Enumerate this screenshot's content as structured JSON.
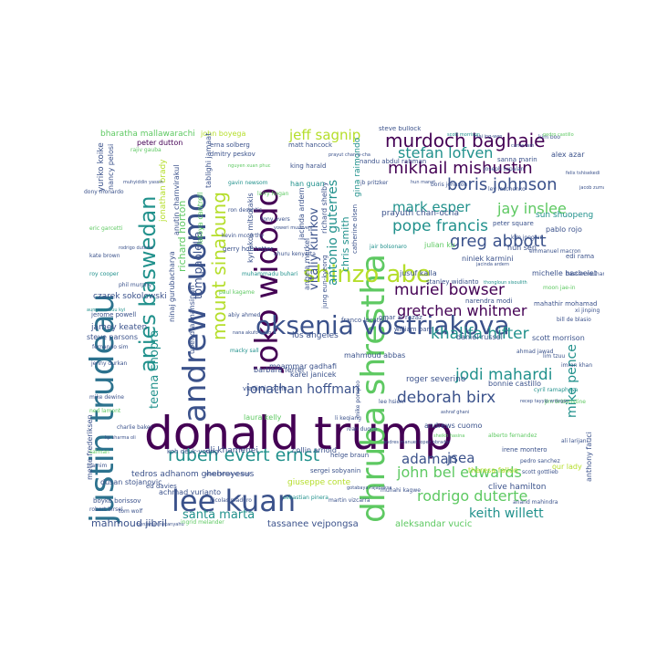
{
  "palette": {
    "deep_purple": "#440154",
    "indigo": "#3b528b",
    "teal": "#21918c",
    "green": "#5ec962",
    "yellow_green": "#b5de2b",
    "dark_teal": "#2c728e"
  },
  "words": [
    {
      "text": "donald trump",
      "color": "#440154"
    },
    {
      "text": "justin trudeau",
      "color": "#2c728e"
    },
    {
      "text": "dhruba shrestha",
      "color": "#5ec962"
    },
    {
      "text": "andrew cuomo",
      "color": "#3b528b"
    },
    {
      "text": "joko widodo",
      "color": "#440154"
    },
    {
      "text": "oksenia vostriakova",
      "color": "#3b528b"
    },
    {
      "text": "lee kuan",
      "color": "#3b528b"
    },
    {
      "text": "shinzo abe",
      "color": "#b5de2b"
    },
    {
      "text": "anies baswedan",
      "color": "#21918c"
    },
    {
      "text": "mount sinabung",
      "color": "#b5de2b"
    },
    {
      "text": "murdoch baghaie",
      "color": "#440154"
    },
    {
      "text": "mikhail mishustin",
      "color": "#440154"
    },
    {
      "text": "ruben evert ernst",
      "color": "#21918c"
    },
    {
      "text": "boris johnson",
      "color": "#3b528b"
    },
    {
      "text": "greg abbott",
      "color": "#3b528b"
    },
    {
      "text": "pope francis",
      "color": "#21918c"
    },
    {
      "text": "muriel bowser",
      "color": "#440154"
    },
    {
      "text": "gretchen whitmer",
      "color": "#440154"
    },
    {
      "text": "khalifa hifter",
      "color": "#21918c"
    },
    {
      "text": "jodi mahardi",
      "color": "#21918c"
    },
    {
      "text": "deborah birx",
      "color": "#3b528b"
    },
    {
      "text": "john bel edwards",
      "color": "#5ec962"
    },
    {
      "text": "rodrigo duterte",
      "color": "#5ec962"
    },
    {
      "text": "keith willett",
      "color": "#21918c"
    },
    {
      "text": "adaman",
      "color": "#3b528b"
    },
    {
      "text": "jsea",
      "color": "#3b528b"
    },
    {
      "text": "santa marta",
      "color": "#21918c"
    },
    {
      "text": "jonathan hoffman",
      "color": "#3b528b"
    },
    {
      "text": "jeff sagnip",
      "color": "#b5de2b"
    },
    {
      "text": "stefan lofven",
      "color": "#21918c"
    },
    {
      "text": "mark esper",
      "color": "#21918c"
    },
    {
      "text": "jay inslee",
      "color": "#5ec962"
    },
    {
      "text": "vitaliy kurikov",
      "color": "#3b528b"
    },
    {
      "text": "antonio guterres",
      "color": "#21918c"
    },
    {
      "text": "mike pence",
      "color": "#21918c"
    },
    {
      "text": "teena chopra",
      "color": "#21918c"
    },
    {
      "text": "tom paolella",
      "color": "#3b528b"
    },
    {
      "text": "richard horton",
      "color": "#5ec962"
    },
    {
      "text": "chris smith",
      "color": "#21918c"
    },
    {
      "text": "mahmoud jibril",
      "color": "#3b528b"
    },
    {
      "text": "tassanee vejpongsa",
      "color": "#3b528b"
    },
    {
      "text": "aleksandar vucic",
      "color": "#5ec962"
    },
    {
      "text": "bharatha mallawarachi",
      "color": "#5ec962"
    },
    {
      "text": "john boyega",
      "color": "#b5de2b"
    },
    {
      "text": "peter dutton",
      "color": "#440154"
    },
    {
      "text": "yuriko koike",
      "color": "#3b528b"
    },
    {
      "text": "nancy pelosi",
      "color": "#3b528b"
    },
    {
      "text": "czarek sokolowski",
      "color": "#3b528b"
    },
    {
      "text": "jamey keaten",
      "color": "#3b528b"
    },
    {
      "text": "steve parsons",
      "color": "#3b528b"
    },
    {
      "text": "mette frederiksen",
      "color": "#3b528b"
    },
    {
      "text": "dusan stojanovic",
      "color": "#3b528b"
    },
    {
      "text": "achmad yurianto",
      "color": "#3b528b"
    },
    {
      "text": "tedros adhanom ghebreyesus",
      "color": "#3b528b"
    },
    {
      "text": "ali khamenei",
      "color": "#3b528b"
    },
    {
      "text": "collin arnold",
      "color": "#3b528b"
    },
    {
      "text": "giuseppe conte",
      "color": "#b5de2b"
    },
    {
      "text": "clive hamilton",
      "color": "#3b528b"
    },
    {
      "text": "anthony fauci",
      "color": "#3b528b"
    },
    {
      "text": "roger severino",
      "color": "#3b528b"
    },
    {
      "text": "andrews cuomo",
      "color": "#3b528b"
    },
    {
      "text": "bonnie castillo",
      "color": "#3b528b"
    },
    {
      "text": "barbara ferrer",
      "color": "#3b528b"
    },
    {
      "text": "moammar gadhafi",
      "color": "#3b528b"
    },
    {
      "text": "mahmoud abbas",
      "color": "#3b528b"
    },
    {
      "text": "karel janicek",
      "color": "#3b528b"
    },
    {
      "text": "daniel russel",
      "color": "#3b528b"
    },
    {
      "text": "scott morrison",
      "color": "#3b528b"
    },
    {
      "text": "prayuth chan-ocha",
      "color": "#3b528b"
    },
    {
      "text": "sun shuopeng",
      "color": "#21918c"
    },
    {
      "text": "pablo rojo",
      "color": "#3b528b"
    },
    {
      "text": "julian ku",
      "color": "#5ec962"
    },
    {
      "text": "hun sen",
      "color": "#3b528b"
    },
    {
      "text": "niniek karmini",
      "color": "#3b528b"
    },
    {
      "text": "jusuf kalla",
      "color": "#3b528b"
    },
    {
      "text": "latoya cantrell",
      "color": "#5ec962"
    },
    {
      "text": "matt hancock",
      "color": "#3b528b"
    },
    {
      "text": "erna solberg",
      "color": "#3b528b"
    },
    {
      "text": "alex azar",
      "color": "#3b528b"
    },
    {
      "text": "sanna marin",
      "color": "#3b528b"
    },
    {
      "text": "jacinda ardern",
      "color": "#3b528b"
    },
    {
      "text": "richard shelby",
      "color": "#3b528b"
    },
    {
      "text": "gina raimondo",
      "color": "#21918c"
    },
    {
      "text": "han guan",
      "color": "#21918c"
    },
    {
      "text": "king harald",
      "color": "#3b528b"
    },
    {
      "text": "dmitry peskov",
      "color": "#3b528b"
    },
    {
      "text": "steve bullock",
      "color": "#3b528b"
    },
    {
      "text": "michelle bachelet",
      "color": "#3b528b"
    },
    {
      "text": "edi rama",
      "color": "#3b528b"
    },
    {
      "text": "mahathir mohamad",
      "color": "#3b528b"
    },
    {
      "text": "narendra modi",
      "color": "#3b528b"
    },
    {
      "text": "william barr",
      "color": "#3b528b"
    },
    {
      "text": "franco locatelli",
      "color": "#3b528b"
    },
    {
      "text": "irene montero",
      "color": "#3b528b"
    },
    {
      "text": "theresa fallon",
      "color": "#b5de2b"
    },
    {
      "text": "helge braun",
      "color": "#3b528b"
    },
    {
      "text": "sergei sobyanin",
      "color": "#3b528b"
    },
    {
      "text": "laura kelly",
      "color": "#5ec962"
    },
    {
      "text": "ninaj gurubacharya",
      "color": "#3b528b"
    },
    {
      "text": "upendra mansingh",
      "color": "#3b528b"
    },
    {
      "text": "vladimir putin",
      "color": "#3b528b"
    },
    {
      "text": "angela merkel",
      "color": "#3b528b"
    },
    {
      "text": "jerome powell",
      "color": "#3b528b"
    },
    {
      "text": "boyko borissov",
      "color": "#3b528b"
    },
    {
      "text": "ed davies",
      "color": "#3b528b"
    },
    {
      "text": "anutin charnvirakul",
      "color": "#3b528b"
    },
    {
      "text": "jonathan brady",
      "color": "#b5de2b"
    },
    {
      "text": "kyriakos mitsotakis",
      "color": "#3b528b"
    },
    {
      "text": "tablighi jamaat",
      "color": "#3b528b"
    },
    {
      "text": "gerry hofstetter",
      "color": "#3b528b"
    },
    {
      "text": "jung eun-kyeong",
      "color": "#3b528b"
    },
    {
      "text": "stanley widianto",
      "color": "#3b528b"
    },
    {
      "text": "catherine olsen",
      "color": "#3b528b"
    },
    {
      "text": "los angeles",
      "color": "#3b528b"
    },
    {
      "text": "koh deuk-young",
      "color": "#3b528b"
    },
    {
      "text": "fernando sim",
      "color": "#3b528b"
    },
    {
      "text": "kevin mccarthy",
      "color": "#3b528b"
    },
    {
      "text": "omar al razaz",
      "color": "#3b528b"
    },
    {
      "text": "li keqiang",
      "color": "#3b528b"
    },
    {
      "text": "muhahi kagwe",
      "color": "#3b528b"
    },
    {
      "text": "scott gottlieb",
      "color": "#3b528b"
    },
    {
      "text": "pedro sanchez",
      "color": "#3b528b"
    },
    {
      "text": "anand mahindra",
      "color": "#3b528b"
    },
    {
      "text": "nandu abdul rahman",
      "color": "#3b528b"
    },
    {
      "text": "joseph tupalan",
      "color": "#3b528b"
    },
    {
      "text": "peter square",
      "color": "#3b528b"
    },
    {
      "text": "lev leschenko",
      "color": "#3b528b"
    },
    {
      "text": "boris johnson",
      "color": "#3b528b"
    },
    {
      "text": "rajiv gauba",
      "color": "#5ec962"
    },
    {
      "text": "dony monardo",
      "color": "#3b528b"
    },
    {
      "text": "jenny durkan",
      "color": "#3b528b"
    },
    {
      "text": "robert birsel",
      "color": "#3b528b"
    },
    {
      "text": "ingrid melander",
      "color": "#5ec962"
    },
    {
      "text": "kim boo",
      "color": "#3b528b"
    },
    {
      "text": "kim jong un",
      "color": "#3b528b"
    },
    {
      "text": "bill de blasio",
      "color": "#3b528b"
    },
    {
      "text": "lim tzuu",
      "color": "#3b528b"
    },
    {
      "text": "jim bridenstine",
      "color": "#5ec962"
    },
    {
      "text": "ali larijani",
      "color": "#3b528b"
    },
    {
      "text": "our lady",
      "color": "#b5de2b"
    },
    {
      "text": "mike pompeo",
      "color": "#3b528b"
    },
    {
      "text": "lee hsien",
      "color": "#3b528b"
    },
    {
      "text": "ahmad jawad",
      "color": "#3b528b"
    },
    {
      "text": "eric garcetti",
      "color": "#5ec962"
    },
    {
      "text": "kate brown",
      "color": "#3b528b"
    },
    {
      "text": "roy cooper",
      "color": "#21918c"
    },
    {
      "text": "phil murphy",
      "color": "#3b528b"
    },
    {
      "text": "mike dewine",
      "color": "#3b528b"
    },
    {
      "text": "ned lamont",
      "color": "#5ec962"
    },
    {
      "text": "charlie baker",
      "color": "#3b528b"
    },
    {
      "text": "tom wolf",
      "color": "#3b528b"
    },
    {
      "text": "gavin newsom",
      "color": "#21918c"
    },
    {
      "text": "ron desantis",
      "color": "#3b528b"
    },
    {
      "text": "larry hogan",
      "color": "#5ec962"
    },
    {
      "text": "tony evers",
      "color": "#3b528b"
    },
    {
      "text": "jb pritzker",
      "color": "#3b528b"
    },
    {
      "text": "jair bolsonaro",
      "color": "#21918c"
    },
    {
      "text": "emmanuel macron",
      "color": "#3b528b"
    },
    {
      "text": "hassan rouhani",
      "color": "#3b528b"
    },
    {
      "text": "moon jae-in",
      "color": "#5ec962"
    },
    {
      "text": "xi jinping",
      "color": "#3b528b"
    },
    {
      "text": "imran khan",
      "color": "#3b528b"
    },
    {
      "text": "cyril ramaphosa",
      "color": "#21918c"
    },
    {
      "text": "recep tayyip erdogan",
      "color": "#3b528b"
    },
    {
      "text": "andres manuel lopez obrador",
      "color": "#3b528b"
    },
    {
      "text": "alberto fernandez",
      "color": "#5ec962"
    },
    {
      "text": "ivan duque",
      "color": "#3b528b"
    },
    {
      "text": "martin vizcarra",
      "color": "#3b528b"
    },
    {
      "text": "sebastian pinera",
      "color": "#21918c"
    },
    {
      "text": "nicolas maduro",
      "color": "#3b528b"
    },
    {
      "text": "benjamin netanyahu",
      "color": "#3b528b"
    },
    {
      "text": "salman",
      "color": "#5ec962"
    },
    {
      "text": "tamim",
      "color": "#3b528b"
    },
    {
      "text": "abdel fattah el-sissi",
      "color": "#3b528b"
    },
    {
      "text": "muhammadu buhari",
      "color": "#21918c"
    },
    {
      "text": "uhuru kenyatta",
      "color": "#3b528b"
    },
    {
      "text": "yoweri museveni",
      "color": "#3b528b"
    },
    {
      "text": "paul kagame",
      "color": "#5ec962"
    },
    {
      "text": "abiy ahmed",
      "color": "#3b528b"
    },
    {
      "text": "nana akufo-addo",
      "color": "#3b528b"
    },
    {
      "text": "macky sall",
      "color": "#21918c"
    },
    {
      "text": "felix tshisekedi",
      "color": "#3b528b"
    },
    {
      "text": "jacob zuma",
      "color": "#3b528b"
    },
    {
      "text": "pedro castillo",
      "color": "#5ec962"
    },
    {
      "text": "tsai ing-wen",
      "color": "#3b528b"
    },
    {
      "text": "carrie lam",
      "color": "#3b528b"
    },
    {
      "text": "scott morrison",
      "color": "#21918c"
    },
    {
      "text": "jacinda ardern",
      "color": "#3b528b"
    },
    {
      "text": "ashraf ghani",
      "color": "#3b528b"
    },
    {
      "text": "sheikh hasina",
      "color": "#5ec962"
    },
    {
      "text": "gotabaya rajapaksa",
      "color": "#3b528b"
    },
    {
      "text": "kp sharma oli",
      "color": "#3b528b"
    },
    {
      "text": "aung san suu kyi",
      "color": "#21918c"
    },
    {
      "text": "rodrigo duterte",
      "color": "#3b528b"
    },
    {
      "text": "muhyiddin yassin",
      "color": "#3b528b"
    },
    {
      "text": "nguyen xuan phuc",
      "color": "#5ec962"
    },
    {
      "text": "prayut chan-o-cha",
      "color": "#3b528b"
    },
    {
      "text": "hun manet",
      "color": "#3b528b"
    },
    {
      "text": "thongloun sisoulith",
      "color": "#21918c"
    }
  ]
}
